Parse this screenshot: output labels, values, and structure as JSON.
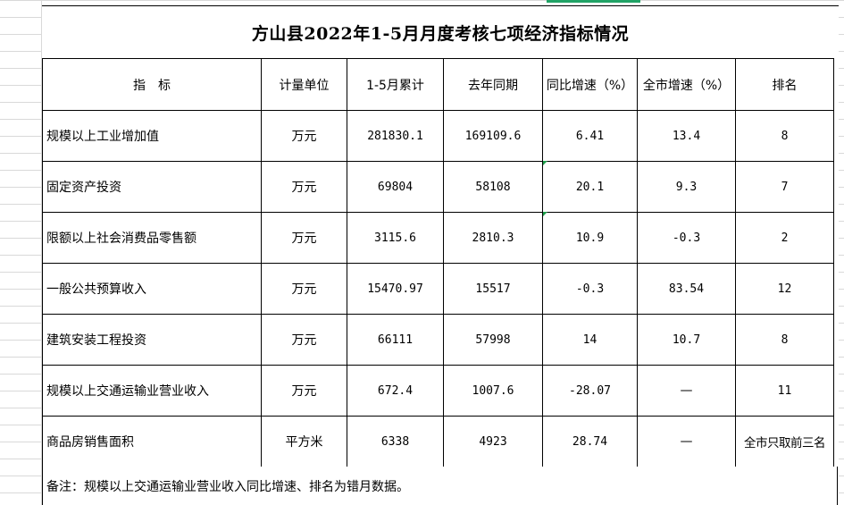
{
  "title": "方山县2022年1-5月月度考核七项经济指标情况",
  "headers": [
    "指　标",
    "计量单位",
    "1-5月累计",
    "去年同期",
    "同比增速（%）",
    "全市增速（%）",
    "排名"
  ],
  "rows": [
    {
      "indicator": "规模以上工业增加值",
      "unit": "万元",
      "ytd": "281830.1",
      "last_year": "169109.6",
      "yoy": "6.41",
      "city": "13.4",
      "rank": "8"
    },
    {
      "indicator": "固定资产投资",
      "unit": "万元",
      "ytd": "69804",
      "last_year": "58108",
      "yoy": "20.1",
      "city": "9.3",
      "rank": "7"
    },
    {
      "indicator": "限额以上社会消费品零售额",
      "unit": "万元",
      "ytd": "3115.6",
      "last_year": "2810.3",
      "yoy": "10.9",
      "city": "-0.3",
      "rank": "2"
    },
    {
      "indicator": "一般公共预算收入",
      "unit": "万元",
      "ytd": "15470.97",
      "last_year": "15517",
      "yoy": "-0.3",
      "city": "83.54",
      "rank": "12"
    },
    {
      "indicator": "建筑安装工程投资",
      "unit": "万元",
      "ytd": "66111",
      "last_year": "57998",
      "yoy": "14",
      "city": "10.7",
      "rank": "8"
    },
    {
      "indicator": "规模以上交通运输业营业收入",
      "unit": "万元",
      "ytd": "672.4",
      "last_year": "1007.6",
      "yoy": "-28.07",
      "city": "—",
      "rank": "11"
    },
    {
      "indicator": "商品房销售面积",
      "unit": "平方米",
      "ytd": "6338",
      "last_year": "4923",
      "yoy": "28.74",
      "city": "—",
      "rank": "全市只取前三名"
    }
  ],
  "note": "备注：规模以上交通运输业营业收入同比增速、排名为错月数据。",
  "colors": {
    "grid": "#d9d9d9",
    "selection": "#21a366",
    "error_marker": "#1e9e4a"
  }
}
